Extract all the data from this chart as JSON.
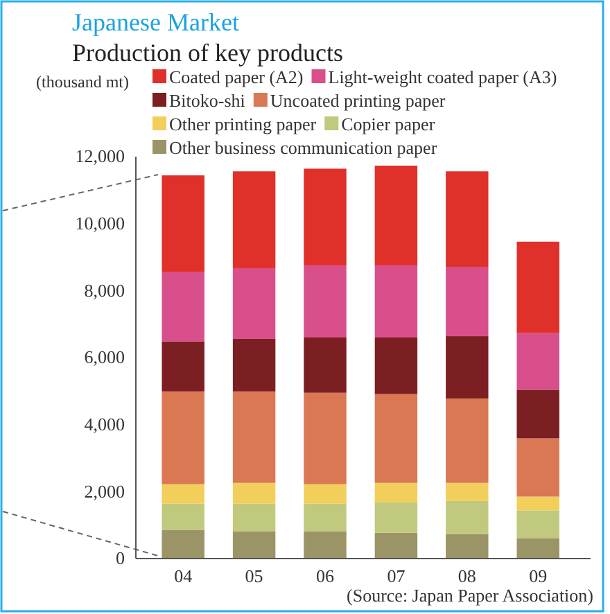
{
  "chart_data": {
    "type": "bar",
    "title": "Japanese Market",
    "subtitle": "Production of key products",
    "ylabel": "(thousand mt)",
    "categories": [
      "04",
      "05",
      "06",
      "07",
      "08",
      "09"
    ],
    "stacked": true,
    "legend": "top",
    "grid": false,
    "ylim": [
      0,
      12000
    ],
    "yticks": [
      {
        "value": 0,
        "label": "0"
      },
      {
        "value": 2000,
        "label": "2,000"
      },
      {
        "value": 4000,
        "label": "4,000"
      },
      {
        "value": 6000,
        "label": "6,000"
      },
      {
        "value": 8000,
        "label": "8,000"
      },
      {
        "value": 10000,
        "label": "10,000"
      },
      {
        "value": 12000,
        "label": "12,000"
      }
    ],
    "series": [
      {
        "name": "Other business communication paper",
        "color": "#9a9466",
        "values": [
          850,
          810,
          810,
          770,
          730,
          610
        ]
      },
      {
        "name": "Copier paper",
        "color": "#c0c97e",
        "values": [
          790,
          830,
          830,
          910,
          990,
          830
        ]
      },
      {
        "name": "Other printing paper",
        "color": "#f2cf5b",
        "values": [
          580,
          620,
          580,
          580,
          540,
          410
        ]
      },
      {
        "name": "Uncoated printing paper",
        "color": "#d97852",
        "values": [
          2770,
          2730,
          2730,
          2650,
          2520,
          1740
        ]
      },
      {
        "name": "Bitoko-shi",
        "color": "#7b1f23",
        "values": [
          1490,
          1570,
          1650,
          1690,
          1860,
          1450
        ]
      },
      {
        "name": "Light-weight coated paper (A3)",
        "color": "#d84f8c",
        "values": [
          2070,
          2110,
          2150,
          2150,
          2070,
          1690
        ]
      },
      {
        "name": "Coated paper (A2)",
        "color": "#e0302a",
        "values": [
          2890,
          2890,
          2890,
          2980,
          2850,
          2730
        ]
      }
    ],
    "annotations": [
      "(Source: Japan Paper Association)"
    ]
  }
}
